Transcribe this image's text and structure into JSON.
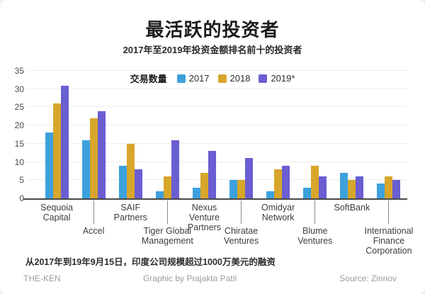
{
  "header": {
    "title": "最活跃的投资者",
    "subtitle": "2017年至2019年投资金额排名前十的投资者"
  },
  "chart_data": {
    "type": "bar",
    "title": "最活跃的投资者",
    "subtitle": "2017年至2019年投资金额排名前十的投资者",
    "legend_label": "交易数量",
    "legend_position": "top",
    "grid": "horizontal",
    "categories": [
      "Sequoia Capital",
      "Accel",
      "SAIF Partners",
      "Tiger Global Management",
      "Nexus Venture Partners",
      "Chiratae Ventures",
      "Omidyar Network",
      "Blume Ventures",
      "SoftBank",
      "International Finance Corporation"
    ],
    "series": [
      {
        "name": "2017",
        "color": "#3da1dd",
        "values": [
          18,
          16,
          9,
          2,
          3,
          5,
          2,
          3,
          7,
          4
        ]
      },
      {
        "name": "2018",
        "color": "#d7a62b",
        "values": [
          26,
          22,
          15,
          6,
          7,
          5,
          8,
          9,
          5,
          6
        ]
      },
      {
        "name": "2019*",
        "color": "#6a5ed2",
        "values": [
          31,
          24,
          8,
          16,
          13,
          11,
          9,
          6,
          6,
          5
        ]
      }
    ],
    "xlabel": "",
    "ylabel": "",
    "ylim": [
      0,
      35
    ],
    "yticks": [
      0,
      5,
      10,
      15,
      20,
      25,
      30,
      35
    ]
  },
  "footnote": "从2017年到19年9月15日，印度公司规模超过1000万美元的融资",
  "footer": {
    "left": "THE-KEN",
    "center": "Graphic by Prajakta Patil",
    "right": "Source: Zinnov"
  }
}
